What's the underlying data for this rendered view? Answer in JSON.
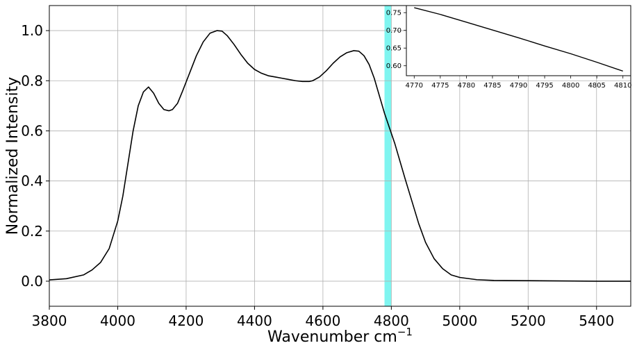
{
  "chart_data": [
    {
      "type": "line",
      "title": "",
      "xlabel": "Wavenumber cm",
      "xlabel_superscript": "−1",
      "ylabel": "Normalized Intensity",
      "xlim": [
        3800,
        5500
      ],
      "ylim": [
        -0.1,
        1.1
      ],
      "xticks": [
        3800,
        4000,
        4200,
        4400,
        4600,
        4800,
        5000,
        5200,
        5400
      ],
      "yticks": [
        0.0,
        0.2,
        0.4,
        0.6,
        0.8,
        1.0
      ],
      "ytick_labels": [
        "0.0",
        "0.2",
        "0.4",
        "0.6",
        "0.8",
        "1.0"
      ],
      "grid": true,
      "highlight_band": {
        "x0": 4780,
        "x1": 4800,
        "color": "#7ff5f0"
      },
      "line_color": "#000000",
      "series": [
        {
          "x": [
            3800,
            3850,
            3900,
            3925,
            3950,
            3975,
            4000,
            4015,
            4030,
            4045,
            4060,
            4075,
            4090,
            4105,
            4120,
            4135,
            4150,
            4160,
            4175,
            4190,
            4210,
            4230,
            4250,
            4270,
            4290,
            4305,
            4320,
            4340,
            4360,
            4380,
            4400,
            4420,
            4440,
            4460,
            4480,
            4500,
            4520,
            4540,
            4560,
            4570,
            4590,
            4610,
            4630,
            4650,
            4670,
            4690,
            4705,
            4720,
            4735,
            4750,
            4765,
            4780,
            4795,
            4810,
            4825,
            4840,
            4860,
            4880,
            4900,
            4925,
            4950,
            4975,
            5000,
            5050,
            5100,
            5200,
            5300,
            5400,
            5500
          ],
          "y": [
            0.005,
            0.01,
            0.025,
            0.045,
            0.075,
            0.13,
            0.24,
            0.34,
            0.47,
            0.6,
            0.7,
            0.755,
            0.775,
            0.75,
            0.71,
            0.685,
            0.68,
            0.685,
            0.71,
            0.76,
            0.83,
            0.9,
            0.955,
            0.99,
            1.0,
            0.998,
            0.98,
            0.945,
            0.905,
            0.87,
            0.845,
            0.83,
            0.82,
            0.815,
            0.81,
            0.805,
            0.8,
            0.797,
            0.797,
            0.8,
            0.815,
            0.84,
            0.87,
            0.895,
            0.912,
            0.92,
            0.918,
            0.9,
            0.865,
            0.81,
            0.74,
            0.67,
            0.61,
            0.55,
            0.48,
            0.41,
            0.32,
            0.23,
            0.155,
            0.09,
            0.05,
            0.025,
            0.015,
            0.006,
            0.003,
            0.002,
            0.001,
            0.0,
            0.0
          ]
        }
      ]
    },
    {
      "type": "line",
      "title": "",
      "xlabel": "",
      "ylabel": "",
      "xlim": [
        4768.5,
        4811.5
      ],
      "ylim": [
        0.572,
        0.77
      ],
      "xticks": [
        4770,
        4775,
        4780,
        4785,
        4790,
        4795,
        4800,
        4805,
        4810
      ],
      "yticks": [
        0.6,
        0.65,
        0.7,
        0.75
      ],
      "ytick_labels": [
        "0.60",
        "0.65",
        "0.70",
        "0.75"
      ],
      "grid": false,
      "line_color": "#000000",
      "series": [
        {
          "x": [
            4770,
            4775,
            4780,
            4785,
            4790,
            4795,
            4800,
            4805,
            4810
          ],
          "y": [
            0.764,
            0.745,
            0.723,
            0.701,
            0.679,
            0.656,
            0.634,
            0.61,
            0.585
          ]
        }
      ]
    }
  ]
}
